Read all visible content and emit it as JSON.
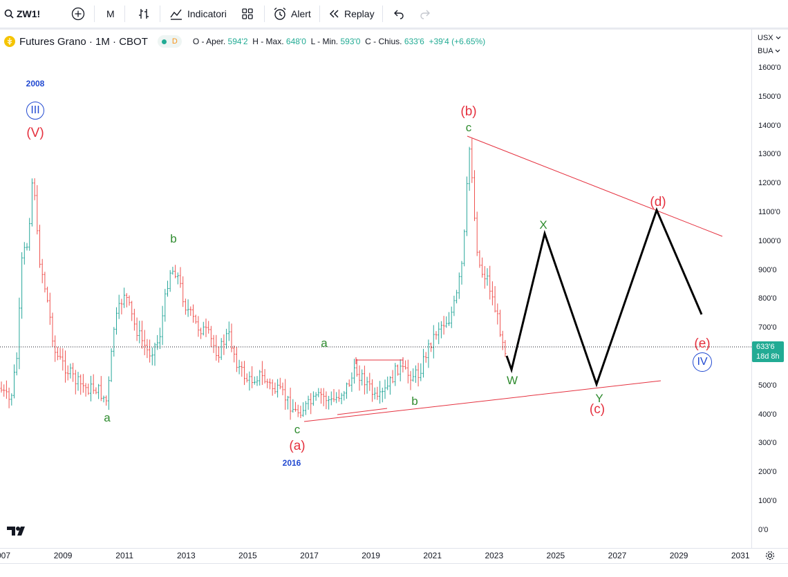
{
  "toolbar": {
    "symbol": "ZW1!",
    "interval": "M",
    "indicators_label": "Indicatori",
    "alert_label": "Alert",
    "replay_label": "Replay"
  },
  "legend": {
    "title": "Futures Grano · 1M · CBOT",
    "badge": "D",
    "o_label": "O - Aper.",
    "o_value": "594'2",
    "h_label": "H - Max.",
    "h_value": "648'0",
    "l_label": "L - Min.",
    "l_value": "593'0",
    "c_label": "C - Chius.",
    "c_value": "633'6",
    "change": "+39'4 (+6.65%)"
  },
  "price_scale": {
    "currency": "USX",
    "unit": "BUA",
    "ticks": [
      "1600'0",
      "1500'0",
      "1400'0",
      "1300'0",
      "1200'0",
      "1100'0",
      "1000'0",
      "900'0",
      "800'0",
      "700'0",
      "600'0",
      "500'0",
      "400'0",
      "300'0",
      "200'0",
      "100'0",
      "0'0"
    ],
    "last_price": "633'6",
    "countdown": "18d 8h"
  },
  "time_scale": {
    "ticks": [
      "007",
      "2009",
      "2011",
      "2013",
      "2015",
      "2017",
      "2019",
      "2021",
      "2023",
      "2025",
      "2027",
      "2029",
      "2031"
    ]
  },
  "annotations": {
    "year_2008": "2008",
    "year_2016": "2016",
    "wave_III": "III",
    "wave_IV": "IV",
    "wave_V": "(V)",
    "wave_a_paren": "(a)",
    "wave_b_paren": "(b)",
    "wave_c_paren": "(c)",
    "wave_d_paren": "(d)",
    "wave_e_paren": "(e)",
    "a_2010": "a",
    "b_2012": "b",
    "c_2016": "c",
    "a_2017": "a",
    "b_2020": "b",
    "c_2022": "c",
    "W": "W",
    "X": "X",
    "Y": "Y"
  },
  "colors": {
    "up": "#26a69a",
    "down": "#ef5350",
    "trendline": "#e5303e",
    "projection": "#000000",
    "wave_red": "#e5303e",
    "wave_green": "#2e8b2e",
    "wave_blue": "#2149d1"
  }
}
